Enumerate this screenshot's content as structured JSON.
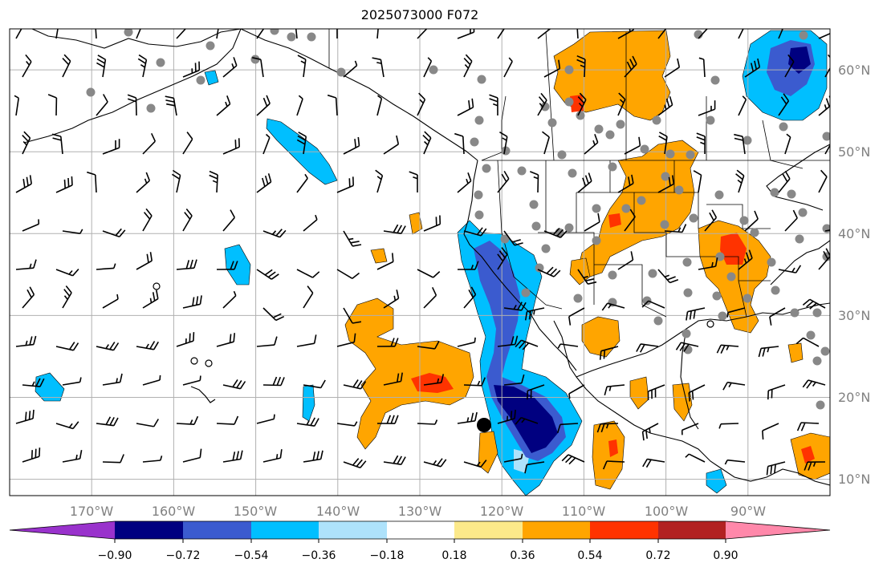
{
  "title": "2025073000 F072",
  "map": {
    "lon_range": [
      -180,
      -80
    ],
    "lat_range": [
      8,
      65
    ],
    "lon_ticks": [
      "170°W",
      "160°W",
      "150°W",
      "140°W",
      "130°W",
      "120°W",
      "110°W",
      "100°W",
      "90°W"
    ],
    "lat_ticks": [
      "10°N",
      "20°N",
      "30°N",
      "40°N",
      "50°N",
      "60°N"
    ],
    "gridlines": true
  },
  "colorbar": {
    "labels": [
      "−0.90",
      "−0.72",
      "−0.54",
      "−0.36",
      "−0.18",
      "0.18",
      "0.36",
      "0.54",
      "0.72",
      "0.90"
    ],
    "colors": [
      "#9932cc",
      "#000080",
      "#3b5bcf",
      "#00bfff",
      "#aee2fb",
      "#ffffff",
      "#fce98a",
      "#ffa500",
      "#ff3300",
      "#b22222",
      "#ff88aa"
    ],
    "extend": "both"
  },
  "marker": {
    "name": "black-dot",
    "lon": -122.5,
    "lat": 16.5
  },
  "colors": {
    "gridline": "#b0b0b0",
    "station": "#888888",
    "coast": "#000000"
  }
}
